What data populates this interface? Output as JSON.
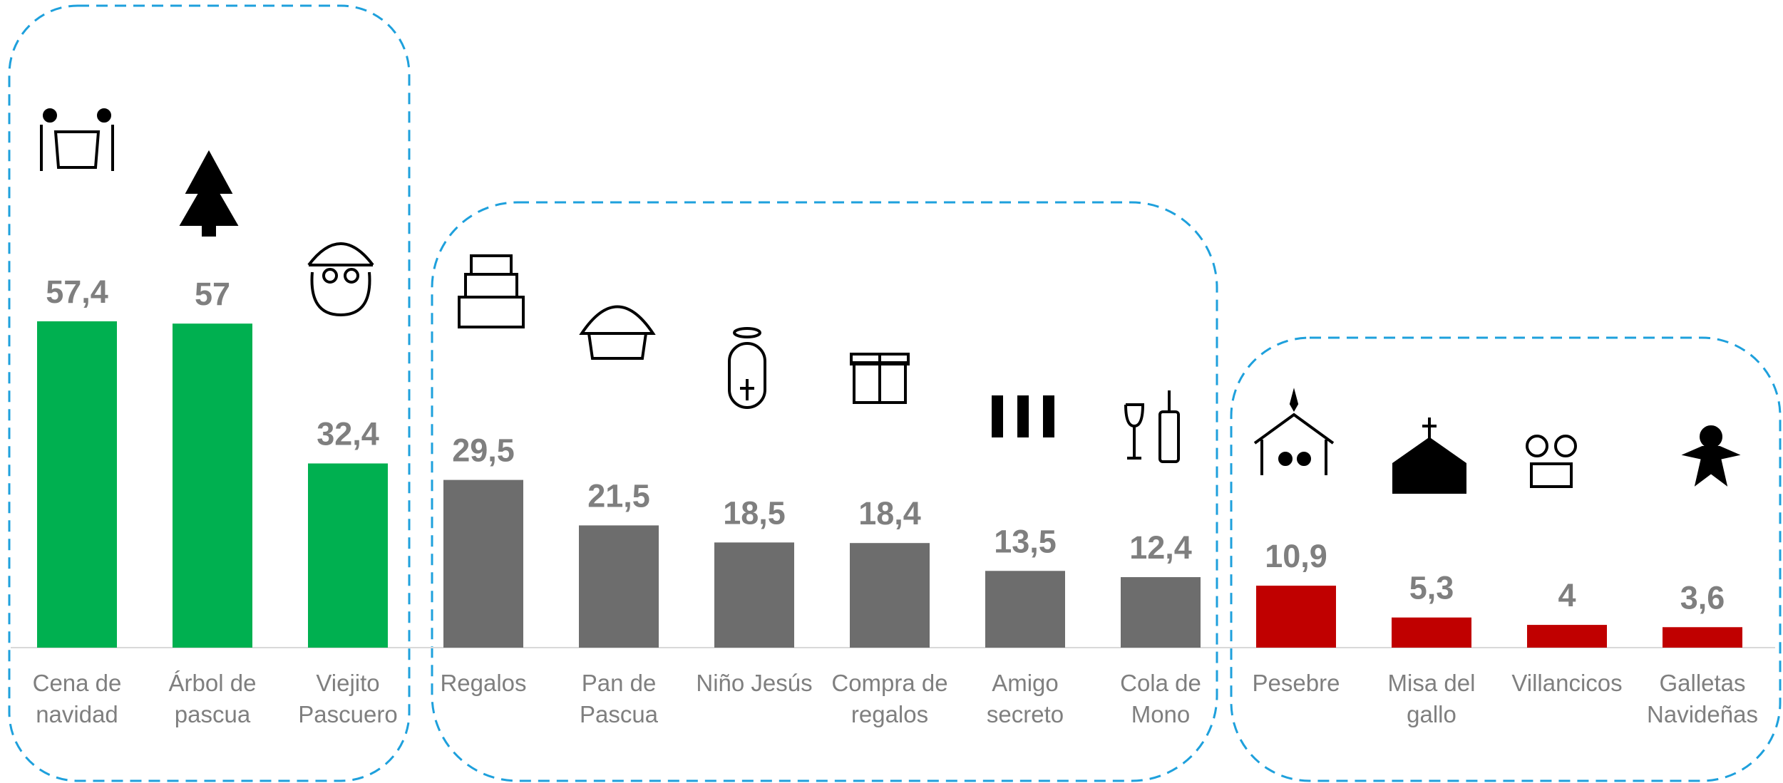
{
  "chart_data": {
    "type": "bar",
    "categories": [
      "Cena de navidad",
      "Árbol de pascua",
      "Viejito Pascuero",
      "Regalos",
      "Pan de Pascua",
      "Niño Jesús",
      "Compra de regalos",
      "Amigo secreto",
      "Cola de Mono",
      "Pesebre",
      "Misa del gallo",
      "Villancicos",
      "Galletas Navideñas"
    ],
    "values": [
      57.4,
      57,
      32.4,
      29.5,
      21.5,
      18.5,
      18.4,
      13.5,
      12.4,
      10.9,
      5.3,
      4,
      3.6
    ],
    "value_labels": [
      "57,4",
      "57",
      "32,4",
      "29,5",
      "21,5",
      "18,5",
      "18,4",
      "13,5",
      "12,4",
      "10,9",
      "5,3",
      "4",
      "3,6"
    ],
    "colors": [
      "#00b050",
      "#00b050",
      "#00b050",
      "#6d6d6d",
      "#6d6d6d",
      "#6d6d6d",
      "#6d6d6d",
      "#6d6d6d",
      "#6d6d6d",
      "#c00000",
      "#c00000",
      "#c00000",
      "#c00000"
    ]
  }
}
